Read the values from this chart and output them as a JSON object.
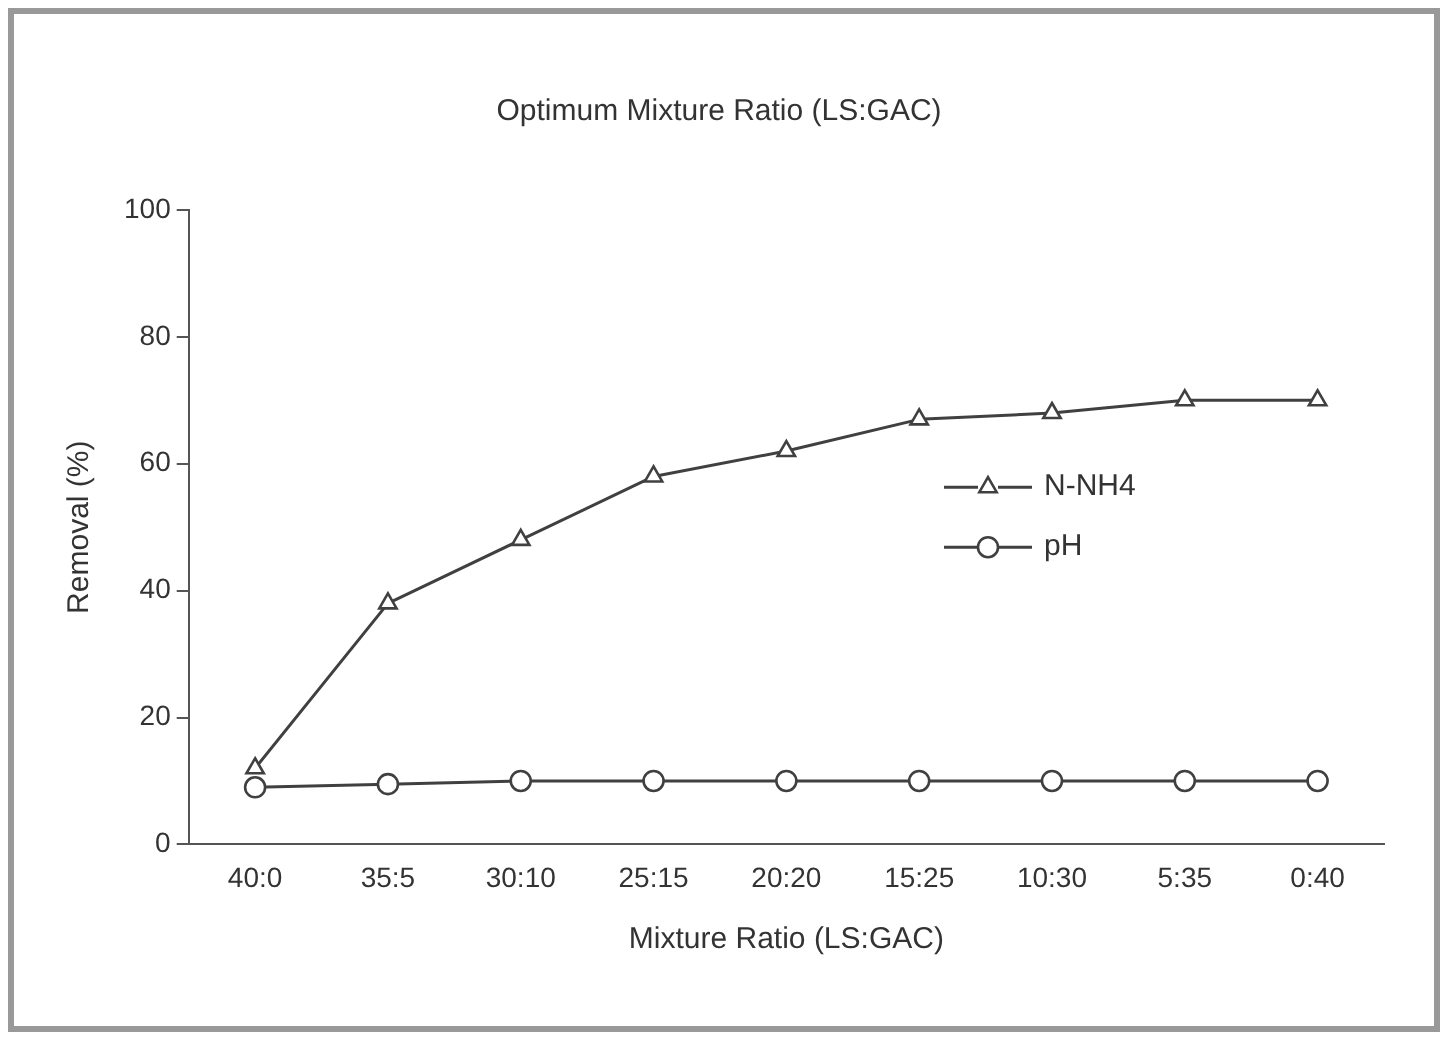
{
  "chart_data": {
    "type": "line",
    "title": "Optimum Mixture Ratio (LS:GAC)",
    "xlabel": "Mixture Ratio (LS:GAC)",
    "ylabel": "Removal (%)",
    "categories": [
      "40:0",
      "35:5",
      "30:10",
      "25:15",
      "20:20",
      "15:25",
      "10:30",
      "5:35",
      "0:40"
    ],
    "series": [
      {
        "name": "N-NH4",
        "color": "#404040",
        "marker": "triangle",
        "values": [
          12,
          38,
          48,
          58,
          62,
          67,
          68,
          70,
          70
        ]
      },
      {
        "name": "pH",
        "color": "#404040",
        "marker": "circle",
        "values": [
          9,
          9.5,
          10,
          10,
          10,
          10,
          10,
          10,
          10
        ]
      }
    ],
    "ylim": [
      0,
      100
    ],
    "yticks": [
      0,
      20,
      40,
      60,
      80,
      100
    ],
    "grid": false,
    "legend": "right",
    "line_style": "solid"
  }
}
